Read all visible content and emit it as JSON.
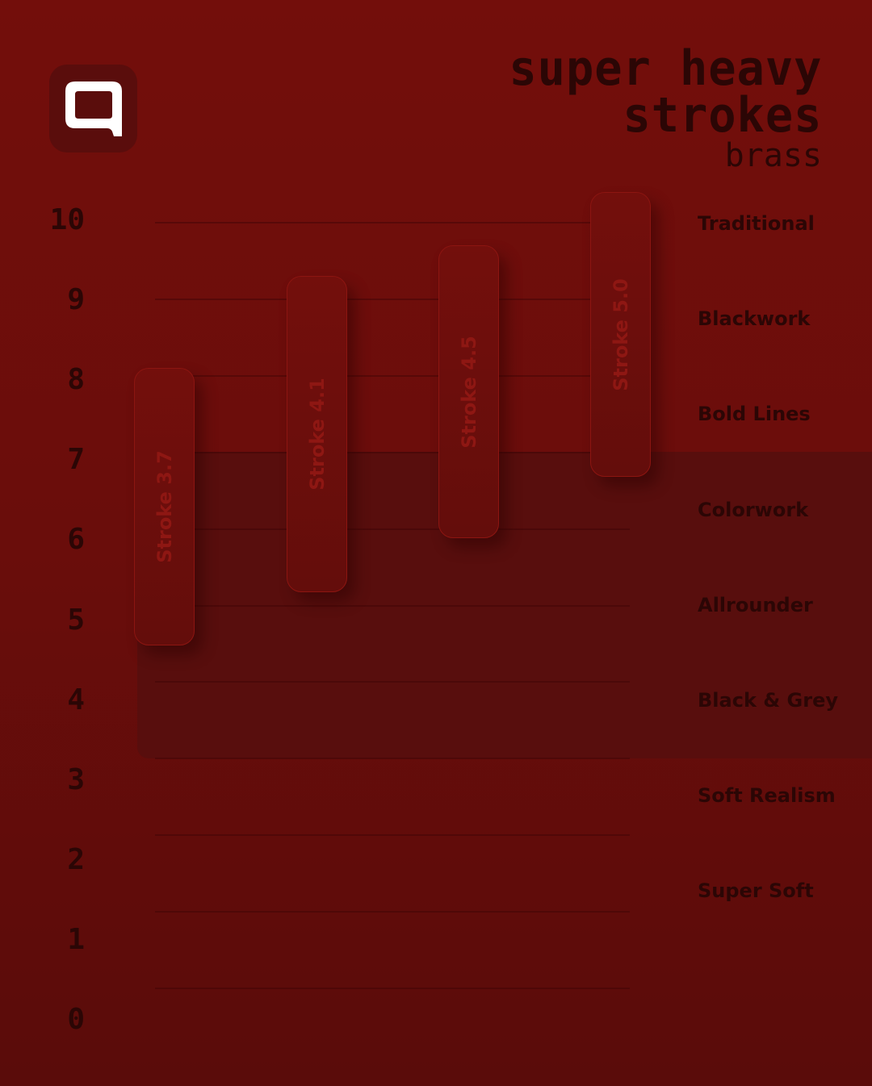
{
  "title_line1": "super heavy",
  "title_line2": "strokes",
  "subtitle": "brass",
  "logo_icon": "q-logo-icon",
  "colors": {
    "background": "#730e0b",
    "text": "#2b0605",
    "bar_border": "#8c1511",
    "logo": "#ffffff"
  },
  "chart_data": {
    "type": "bar",
    "subtype": "floating-range",
    "orientation": "vertical",
    "ylim": [
      0,
      10
    ],
    "y_ticks": [
      "0",
      "1",
      "2",
      "3",
      "4",
      "5",
      "6",
      "7",
      "8",
      "9",
      "10"
    ],
    "grid": true,
    "series": [
      {
        "label": "Stroke 3.7",
        "low": 4.5,
        "high": 8.1
      },
      {
        "label": "Stroke 4.1",
        "low": 5.2,
        "high": 9.3
      },
      {
        "label": "Stroke 4.5",
        "low": 5.9,
        "high": 9.7
      },
      {
        "label": "Stroke 5.0",
        "low": 6.7,
        "high": 10.4
      }
    ],
    "categories_right": [
      "Traditional",
      "Blackwork",
      "Bold Lines",
      "Colorwork",
      "Allrounder",
      "Black & Grey",
      "Soft Realism",
      "Super Soft"
    ]
  }
}
